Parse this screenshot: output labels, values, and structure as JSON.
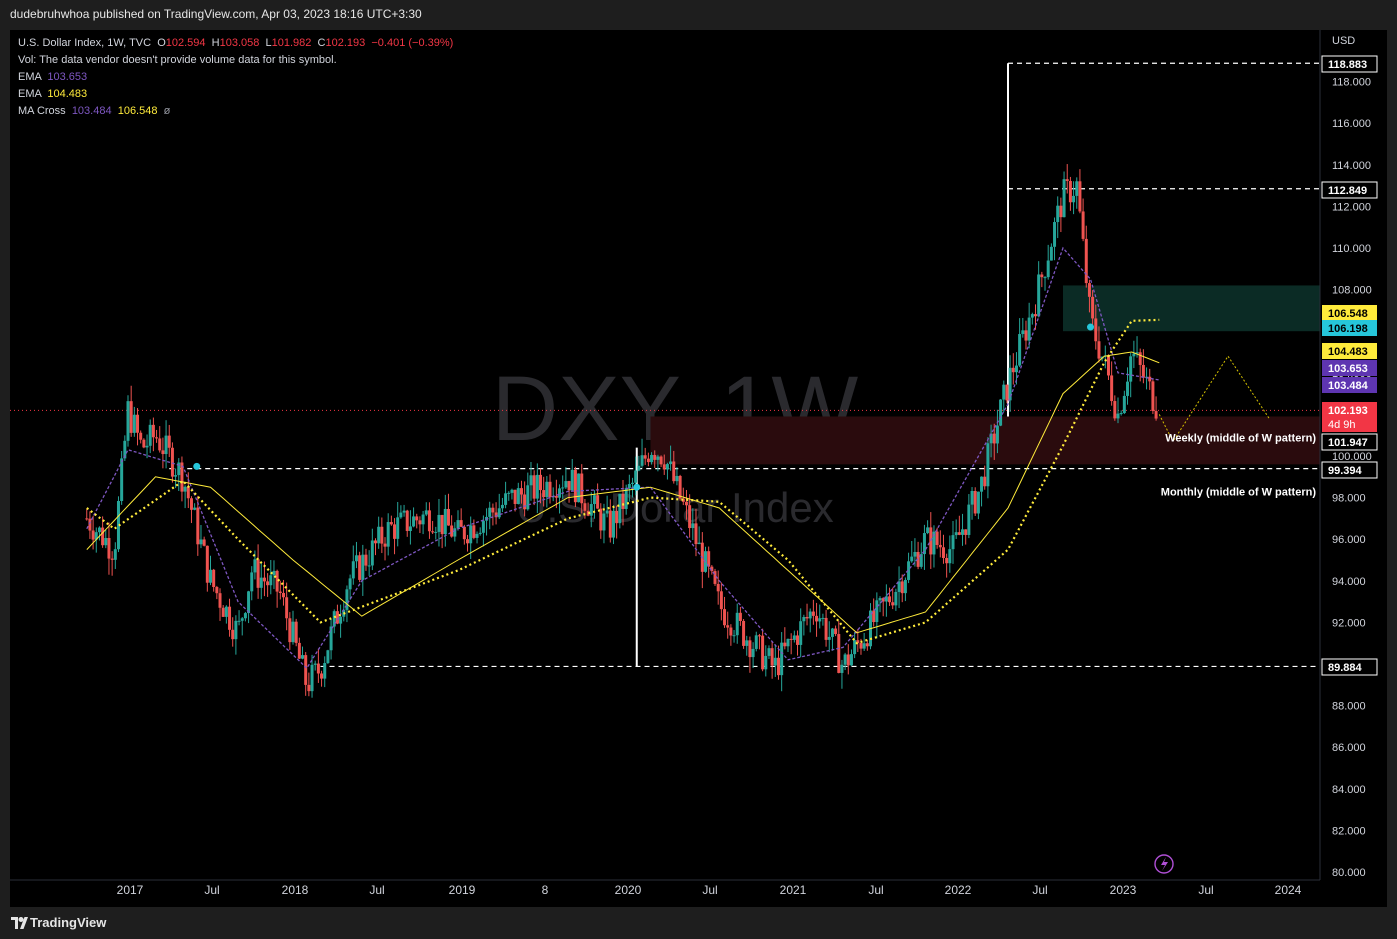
{
  "header": {
    "published": "dudebruhwhoa published on TradingView.com, Apr 03, 2023 18:16 UTC+3:30"
  },
  "legend": {
    "symbol": "U.S. Dollar Index, 1W, TVC",
    "o_label": "O",
    "o": "102.594",
    "h_label": "H",
    "h": "103.058",
    "l_label": "L",
    "l": "101.982",
    "c_label": "C",
    "c": "102.193",
    "change": "−0.401 (−0.39%)",
    "vol": "Vol: The data vendor doesn't provide volume data for this symbol.",
    "ema1_label": "EMA",
    "ema1": "103.653",
    "ema2_label": "EMA",
    "ema2": "104.483",
    "macross_label": "MA Cross",
    "macross1": "103.484",
    "macross2": "106.548",
    "macross3": "ø"
  },
  "watermark": {
    "main": "DXY, 1W",
    "sub": "U.S. Dollar Index"
  },
  "footer": {
    "brand": "TradingView"
  },
  "colors": {
    "up": "#26a69a",
    "down": "#ef5350",
    "ema_fast": "#7e57c2",
    "ema_slow": "#ffeb3b",
    "green_zone": "#0b2b25",
    "red_zone": "#2a0b0d",
    "price_line": "#f23645"
  },
  "chart_data": {
    "type": "candlestick",
    "currency": "USD",
    "interval": "1W",
    "ylim": [
      80,
      120
    ],
    "yticks": [
      80,
      82,
      84,
      86,
      88,
      90,
      92,
      94,
      96,
      98,
      100,
      102,
      104,
      106,
      108,
      110,
      112,
      114,
      116,
      118
    ],
    "xticks": [
      "2017",
      "Jul",
      "2018",
      "Jul",
      "2019",
      "8",
      "2020",
      "Jul",
      "2021",
      "Jul",
      "2022",
      "Jul",
      "2023",
      "Jul",
      "2024"
    ],
    "price_path": [
      [
        "2016-10",
        97
      ],
      [
        "2016-12",
        95.5
      ],
      [
        "2017-01",
        102.2
      ],
      [
        "2017-02",
        100.4
      ],
      [
        "2017-03",
        101.0
      ],
      [
        "2017-05",
        99.0
      ],
      [
        "2017-07",
        94.0
      ],
      [
        "2017-09",
        91.5
      ],
      [
        "2017-10",
        94.5
      ],
      [
        "2017-12",
        93.5
      ],
      [
        "2018-02",
        89.0
      ],
      [
        "2018-03",
        89.8
      ],
      [
        "2018-05",
        94.0
      ],
      [
        "2018-08",
        96.5
      ],
      [
        "2018-11",
        97.2
      ],
      [
        "2019-01",
        96.2
      ],
      [
        "2019-05",
        98.0
      ],
      [
        "2019-09",
        99.0
      ],
      [
        "2019-12",
        96.5
      ],
      [
        "2020-02",
        99.0
      ],
      [
        "2020-03",
        100.5
      ],
      [
        "2020-04",
        100.0
      ],
      [
        "2020-06",
        96.5
      ],
      [
        "2020-08",
        92.8
      ],
      [
        "2020-12",
        89.8
      ],
      [
        "2021-03",
        92.8
      ],
      [
        "2021-05",
        89.9
      ],
      [
        "2021-08",
        92.8
      ],
      [
        "2021-11",
        96.0
      ],
      [
        "2022-01",
        95.5
      ],
      [
        "2022-03",
        98.5
      ],
      [
        "2022-05",
        103.5
      ],
      [
        "2022-07",
        107.5
      ],
      [
        "2022-09",
        112.5
      ],
      [
        "2022-10",
        113.0
      ],
      [
        "2022-11",
        106.5
      ],
      [
        "2022-12",
        104.5
      ],
      [
        "2023-01",
        102.0
      ],
      [
        "2023-02",
        105.0
      ],
      [
        "2023-04",
        102.193
      ]
    ],
    "ema_fast_path": [
      [
        "2016-10",
        96.5
      ],
      [
        "2017-01",
        100.3
      ],
      [
        "2017-05",
        99.5
      ],
      [
        "2017-09",
        93.0
      ],
      [
        "2018-02",
        89.8
      ],
      [
        "2018-06",
        94.0
      ],
      [
        "2019-01",
        96.5
      ],
      [
        "2019-09",
        98.3
      ],
      [
        "2020-03",
        98.5
      ],
      [
        "2020-08",
        94.0
      ],
      [
        "2021-01",
        90.2
      ],
      [
        "2021-05",
        90.8
      ],
      [
        "2021-11",
        95.5
      ],
      [
        "2022-05",
        102.5
      ],
      [
        "2022-09",
        110.0
      ],
      [
        "2022-11",
        108.5
      ],
      [
        "2023-01",
        104.0
      ],
      [
        "2023-04",
        103.653
      ]
    ],
    "ema_slow_path": [
      [
        "2016-10",
        95.5
      ],
      [
        "2017-03",
        99.0
      ],
      [
        "2017-07",
        98.5
      ],
      [
        "2018-01",
        95.0
      ],
      [
        "2018-06",
        92.3
      ],
      [
        "2019-01",
        95.0
      ],
      [
        "2019-09",
        98.0
      ],
      [
        "2020-03",
        98.5
      ],
      [
        "2020-08",
        97.5
      ],
      [
        "2021-01",
        94.5
      ],
      [
        "2021-06",
        91.5
      ],
      [
        "2021-11",
        92.5
      ],
      [
        "2022-05",
        97.5
      ],
      [
        "2022-09",
        103.0
      ],
      [
        "2022-12",
        104.8
      ],
      [
        "2023-02",
        105.0
      ],
      [
        "2023-04",
        104.483
      ]
    ],
    "macross_slow_path": [
      [
        "2016-10",
        97.5
      ],
      [
        "2016-12",
        96.5
      ],
      [
        "2017-05",
        98.8
      ],
      [
        "2017-09",
        96.0
      ],
      [
        "2018-03",
        92.0
      ],
      [
        "2019-01",
        94.5
      ],
      [
        "2019-09",
        97.0
      ],
      [
        "2020-03",
        98.0
      ],
      [
        "2020-08",
        97.8
      ],
      [
        "2021-01",
        95.0
      ],
      [
        "2021-06",
        91.0
      ],
      [
        "2021-11",
        92.0
      ],
      [
        "2022-05",
        95.5
      ],
      [
        "2022-09",
        100.5
      ],
      [
        "2022-12",
        104.5
      ],
      [
        "2023-02",
        106.5
      ],
      [
        "2023-04",
        106.548
      ]
    ],
    "levels": [
      {
        "value": 118.883,
        "label": "118.883",
        "from": "2022-05"
      },
      {
        "value": 112.849,
        "label": "112.849",
        "from": "2022-05"
      },
      {
        "value": 99.394,
        "label": "99.394",
        "from": "2017-04"
      },
      {
        "value": 89.884,
        "label": "89.884",
        "from": "2018-03"
      }
    ],
    "zones": [
      {
        "name": "demand-weekly",
        "from": "2020-03",
        "to": "2023-04",
        "low": 99.6,
        "high": 101.9,
        "color": "#2a0b0d"
      },
      {
        "name": "supply",
        "from": "2022-09",
        "to": "2023-04",
        "low": 106.0,
        "high": 108.2,
        "color": "#0b2b25"
      }
    ],
    "annotations": [
      {
        "text": "Weekly (middle of W pattern)",
        "value": 100.9
      },
      {
        "text": "Monthly (middle of W pattern)",
        "value": 98.3
      }
    ],
    "projection": [
      [
        "2023-04",
        102.0
      ],
      [
        "2023-05",
        100.7
      ],
      [
        "2023-09",
        104.8
      ],
      [
        "2023-12",
        101.8
      ]
    ],
    "price_labels": [
      {
        "value": 106.548,
        "text": "106.548",
        "bg": "#ffeb3b",
        "fg": "#000"
      },
      {
        "value": 106.198,
        "text": "106.198",
        "bg": "#26c6da",
        "fg": "#000"
      },
      {
        "value": 104.483,
        "text": "104.483",
        "bg": "#ffeb3b",
        "fg": "#000"
      },
      {
        "value": 103.653,
        "text": "103.653",
        "bg": "#5e35b1",
        "fg": "#fff"
      },
      {
        "value": 103.484,
        "text": "103.484",
        "bg": "#5e35b1",
        "fg": "#fff"
      },
      {
        "value": 102.193,
        "text": "102.193",
        "bg": "#f23645",
        "fg": "#fff",
        "sub": "4d 9h"
      },
      {
        "value": 101.947,
        "text": "101.947",
        "bg": "#000",
        "fg": "#fff",
        "border": true
      },
      {
        "value": 99.394,
        "text": "99.394",
        "bg": "#000",
        "fg": "#fff",
        "border": true
      },
      {
        "value": 89.884,
        "text": "89.884",
        "bg": "#000",
        "fg": "#fff",
        "border": true
      },
      {
        "value": 112.849,
        "text": "112.849",
        "bg": "#000",
        "fg": "#fff",
        "border": true
      },
      {
        "value": 118.883,
        "text": "118.883",
        "bg": "#000",
        "fg": "#fff",
        "border": true
      }
    ]
  }
}
